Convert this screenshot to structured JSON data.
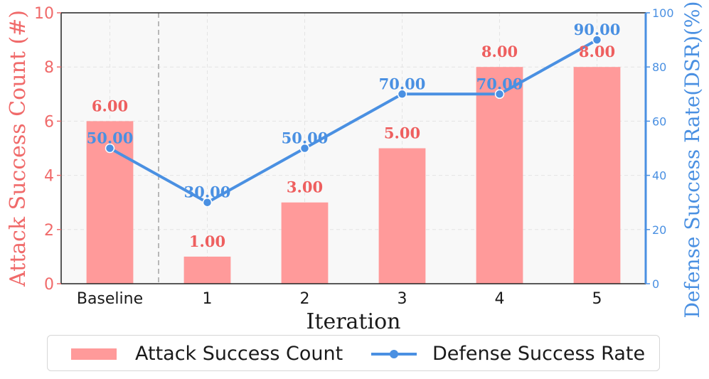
{
  "chart_data": {
    "type": "bar",
    "categories": [
      "Baseline",
      "1",
      "2",
      "3",
      "4",
      "5"
    ],
    "series": [
      {
        "name": "Attack Success Count",
        "type": "bar",
        "axis": "left",
        "values": [
          6,
          1,
          3,
          5,
          8,
          8
        ],
        "labels": [
          "6.00",
          "1.00",
          "3.00",
          "5.00",
          "8.00",
          "8.00"
        ],
        "color": "#ff9a9a"
      },
      {
        "name": "Defense Success Rate",
        "type": "line",
        "axis": "right",
        "values": [
          50,
          30,
          50,
          70,
          70,
          90
        ],
        "labels": [
          "50.00",
          "30.00",
          "50.00",
          "70.00",
          "70.00",
          "90.00"
        ],
        "color": "#4a90e2"
      }
    ],
    "xlabel": "Iteration",
    "ylabel_left": "Attack Success Count (#)",
    "ylabel_right": "Defense Success Rate(DSR)(%)",
    "ylim_left": [
      0,
      10
    ],
    "ylim_right": [
      0,
      100
    ],
    "yticks_left": [
      "0",
      "2",
      "4",
      "6",
      "8",
      "10"
    ],
    "yticks_right": [
      "0",
      "20",
      "40",
      "60",
      "80",
      "100"
    ],
    "grid": true,
    "separator_after_category": "Baseline",
    "legend_position": "bottom",
    "colors": {
      "left_axis": "#f06a6a",
      "right_axis": "#4a90e2",
      "bar_label": "#ee5f5f"
    }
  }
}
